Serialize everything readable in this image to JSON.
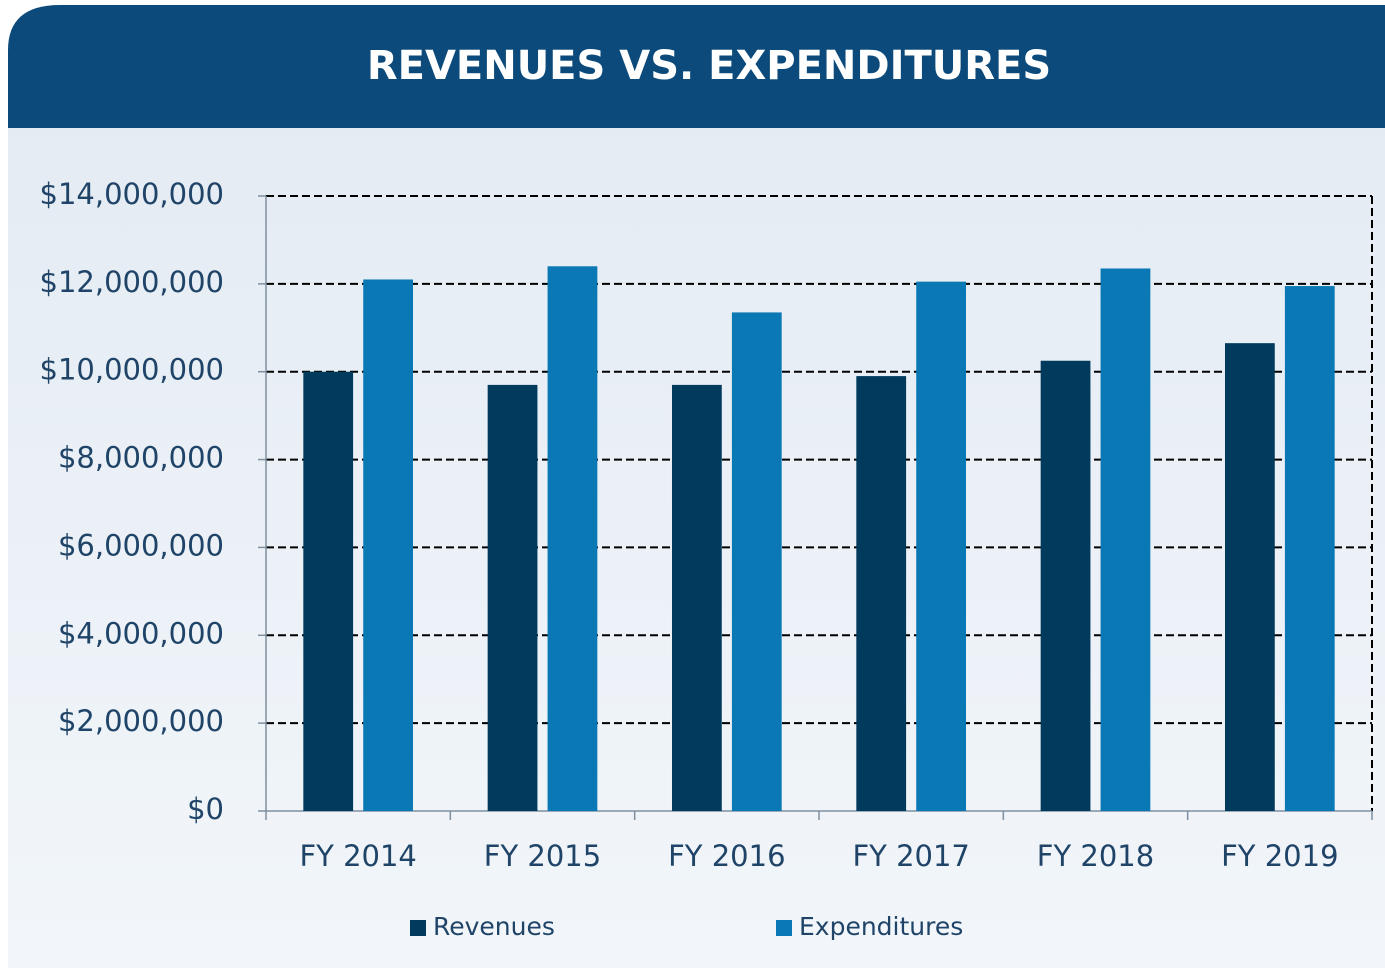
{
  "chart_data": {
    "type": "bar",
    "title": "REVENUES VS. EXPENDITURES",
    "categories": [
      "FY 2014",
      "FY 2015",
      "FY 2016",
      "FY 2017",
      "FY 2018",
      "FY 2019"
    ],
    "series": [
      {
        "name": "Revenues",
        "color": "#003a5c",
        "values": [
          10000000,
          9700000,
          9700000,
          9900000,
          10250000,
          10650000
        ]
      },
      {
        "name": "Expenditures",
        "color": "#0a78b4",
        "values": [
          12100000,
          12400000,
          11350000,
          12050000,
          12350000,
          11950000
        ]
      }
    ],
    "ylim": [
      0,
      14000000
    ],
    "yticks": [
      {
        "value": 0,
        "label": "$0"
      },
      {
        "value": 2000000,
        "label": "$2,000,000"
      },
      {
        "value": 4000000,
        "label": "$4,000,000"
      },
      {
        "value": 6000000,
        "label": "$6,000,000"
      },
      {
        "value": 8000000,
        "label": "$8,000,000"
      },
      {
        "value": 10000000,
        "label": "$10,000,000"
      },
      {
        "value": 12000000,
        "label": "$12,000,000"
      },
      {
        "value": 14000000,
        "label": "$14,000,000"
      }
    ],
    "grid": true,
    "legend": "bottom"
  }
}
